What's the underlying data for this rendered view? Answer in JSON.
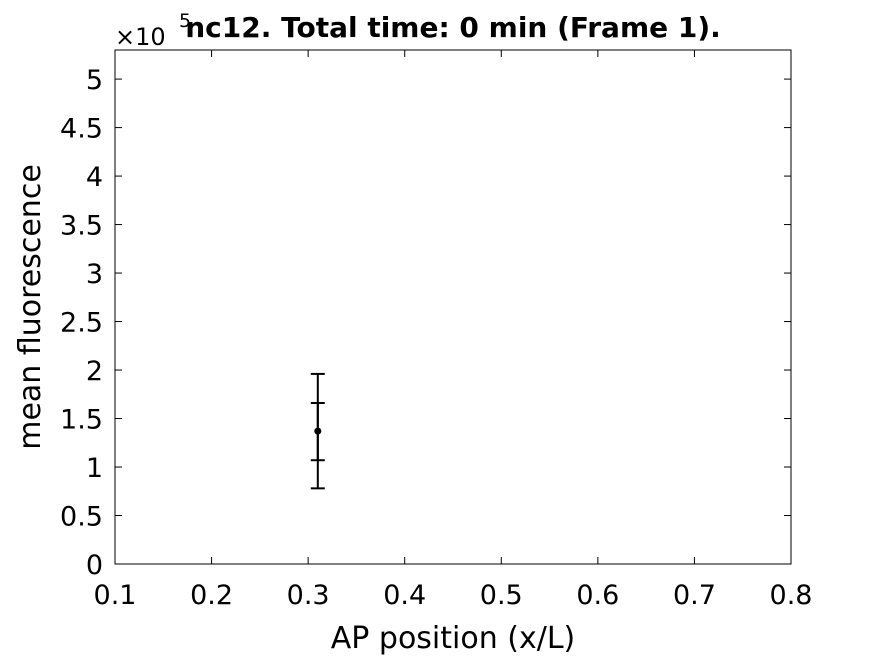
{
  "chart_data": {
    "type": "scatter",
    "title": "nc12. Total time: 0 min (Frame 1).",
    "xlabel": "AP position (x/L)",
    "ylabel": "mean fluorescence",
    "xlim": [
      0.1,
      0.8
    ],
    "ylim": [
      0,
      5.3
    ],
    "xticks": [
      "0.1",
      "0.2",
      "0.3",
      "0.4",
      "0.5",
      "0.6",
      "0.7",
      "0.8"
    ],
    "yticks": [
      "0",
      "0.5",
      "1",
      "1.5",
      "2",
      "2.5",
      "3",
      "3.5",
      "4",
      "4.5",
      "5"
    ],
    "y_multiplier": {
      "prefix": "×10",
      "exponent": "5"
    },
    "grid": false,
    "series": [
      {
        "points": [
          {
            "x": 0.31,
            "y": 1.37,
            "error_bars": [
              {
                "low": 0.78,
                "high": 1.96
              },
              {
                "low": 1.07,
                "high": 1.66
              }
            ]
          }
        ],
        "color": "#000000"
      }
    ]
  }
}
